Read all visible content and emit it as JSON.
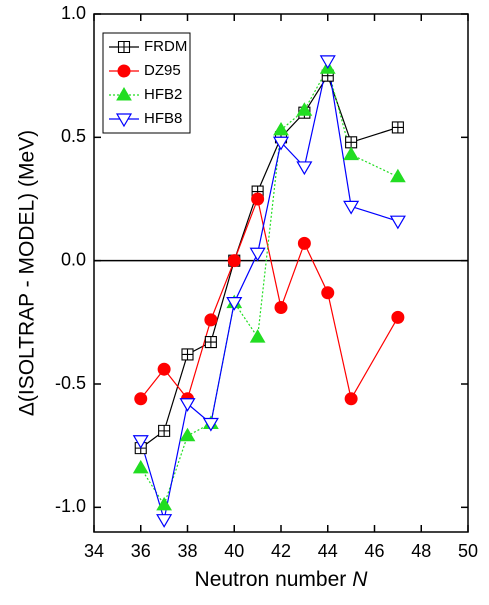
{
  "chart_data": {
    "type": "line",
    "xlabel": "Neutron number",
    "xlabel_symbol": "N",
    "ylabel": "Δ(ISOLTRAP - MODEL) (MeV)",
    "x": [
      36,
      37,
      38,
      39,
      40,
      41,
      42,
      43,
      44,
      45,
      47
    ],
    "series": [
      {
        "name": "FRDM",
        "color": "#000000",
        "marker": "boxplus",
        "dash": "solid",
        "values": [
          -0.76,
          -0.69,
          -0.38,
          -0.33,
          0.0,
          0.28,
          0.5,
          0.6,
          0.75,
          0.48,
          0.54
        ]
      },
      {
        "name": "DZ95",
        "color": "#ff0000",
        "marker": "circle",
        "dash": "solid",
        "values": [
          -0.56,
          -0.44,
          -0.56,
          -0.24,
          0.0,
          0.25,
          -0.19,
          0.07,
          -0.13,
          -0.56,
          -0.23
        ]
      },
      {
        "name": "HFB2",
        "color": "#22dd22",
        "marker": "triangle-up",
        "dash": "dotted",
        "values": [
          -0.84,
          -0.99,
          -0.71,
          -0.66,
          -0.17,
          -0.31,
          0.53,
          0.61,
          0.78,
          0.43,
          0.34
        ]
      },
      {
        "name": "HFB8",
        "color": "#0000ff",
        "marker": "triangle-down-open",
        "dash": "solid",
        "values": [
          -0.73,
          -1.05,
          -0.58,
          -0.66,
          -0.17,
          0.03,
          0.48,
          0.38,
          0.81,
          0.22,
          0.16
        ]
      }
    ],
    "xlim": [
      34,
      50
    ],
    "xticks": [
      34,
      36,
      38,
      40,
      42,
      44,
      46,
      48,
      50
    ],
    "ylim": [
      -1.1,
      1.0
    ],
    "yticks": [
      {
        "value": -1.0,
        "label": "-1.0"
      },
      {
        "value": -0.5,
        "label": "-0.5"
      },
      {
        "value": 0.0,
        "label": "0.0"
      },
      {
        "value": 0.5,
        "label": "0.5"
      },
      {
        "value": 1.0,
        "label": "1.0"
      }
    ],
    "reference_line": 0,
    "grid": false,
    "legend": "upper left"
  }
}
